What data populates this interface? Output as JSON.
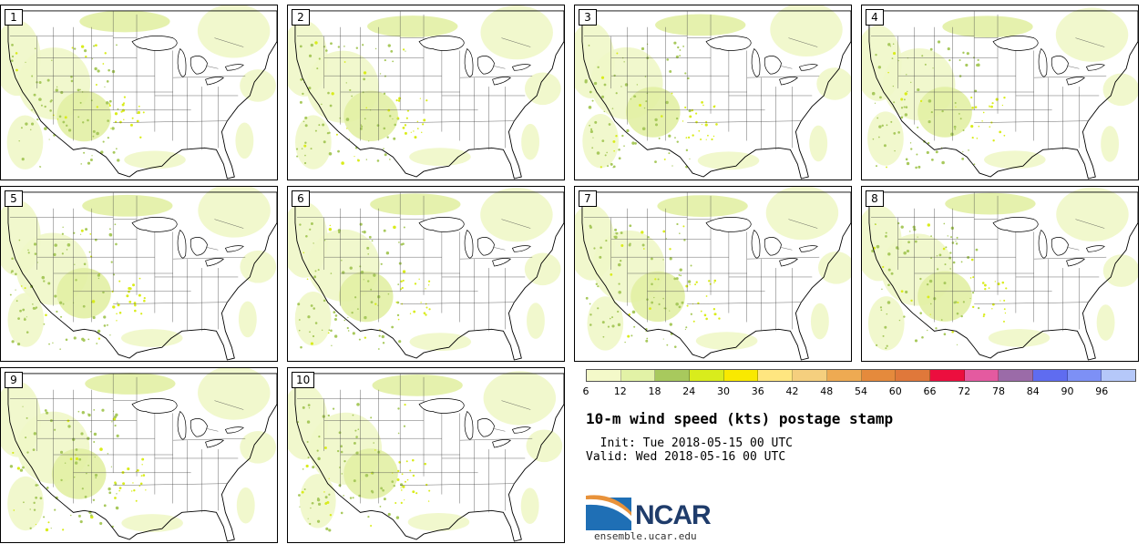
{
  "panels": [
    {
      "label": "1",
      "seed": 11
    },
    {
      "label": "2",
      "seed": 23
    },
    {
      "label": "3",
      "seed": 37
    },
    {
      "label": "4",
      "seed": 41
    },
    {
      "label": "5",
      "seed": 53
    },
    {
      "label": "6",
      "seed": 67
    },
    {
      "label": "7",
      "seed": 71
    },
    {
      "label": "8",
      "seed": 83
    },
    {
      "label": "9",
      "seed": 97
    },
    {
      "label": "10",
      "seed": 101
    }
  ],
  "colorbar": {
    "ticks": [
      "6",
      "12",
      "18",
      "24",
      "30",
      "36",
      "42",
      "48",
      "54",
      "60",
      "66",
      "72",
      "78",
      "84",
      "90",
      "96"
    ],
    "colors": [
      "#f4f9c9",
      "#e2f2a6",
      "#a8c95d",
      "#d9ec1c",
      "#f9e900",
      "#ffe680",
      "#f5cf7e",
      "#eeaa52",
      "#e58a3c",
      "#e0783a",
      "#ec0e3e",
      "#e45aa0",
      "#9b6ba8",
      "#5f6cf0",
      "#7d90f6",
      "#b5c8f9"
    ]
  },
  "title": "10-m wind speed (kts) postage stamp",
  "init": "  Init: Tue 2018-05-15 00 UTC",
  "valid": "Valid: Wed 2018-05-16 00 UTC",
  "logo": {
    "text": "NCAR",
    "website": "ensemble.ucar.edu"
  },
  "palette": {
    "light": "#f0f7c8",
    "medium": "#e2f0a4",
    "dark": "#a8c95d",
    "yellow": "#d9ec1c"
  }
}
